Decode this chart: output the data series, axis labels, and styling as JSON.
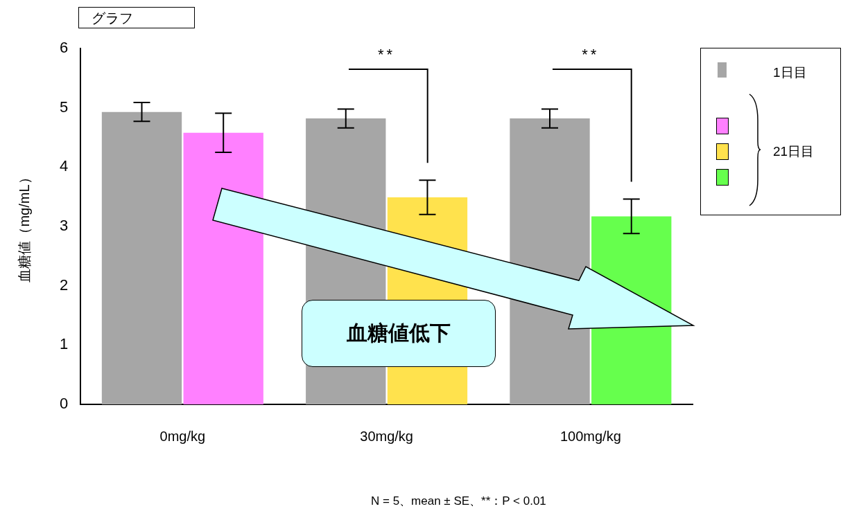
{
  "chart_data": {
    "type": "bar",
    "title": "グラフ",
    "ylabel": "血糖値（mg/mL）",
    "categories": [
      "0mg/kg",
      "30mg/kg",
      "100mg/kg"
    ],
    "series": [
      {
        "name": "1日目",
        "color": "#a6a6a6",
        "values": [
          4.93,
          4.82,
          4.82
        ],
        "errors": [
          0.16,
          0.16,
          0.16
        ]
      },
      {
        "name": "21日目",
        "colors": [
          "#ff80ff",
          "#ffe24d",
          "#66ff4d"
        ],
        "values": [
          4.58,
          3.49,
          3.17
        ],
        "errors": [
          0.33,
          0.29,
          0.29
        ]
      }
    ],
    "ylim": [
      0,
      6
    ],
    "yticks": [
      0,
      1,
      2,
      3,
      4,
      5,
      6
    ],
    "grid": false,
    "legend": "right",
    "annotations": [
      "**",
      "**",
      "血糖値低下",
      "N = 5、mean ± SE、**：P < 0.01"
    ]
  }
}
